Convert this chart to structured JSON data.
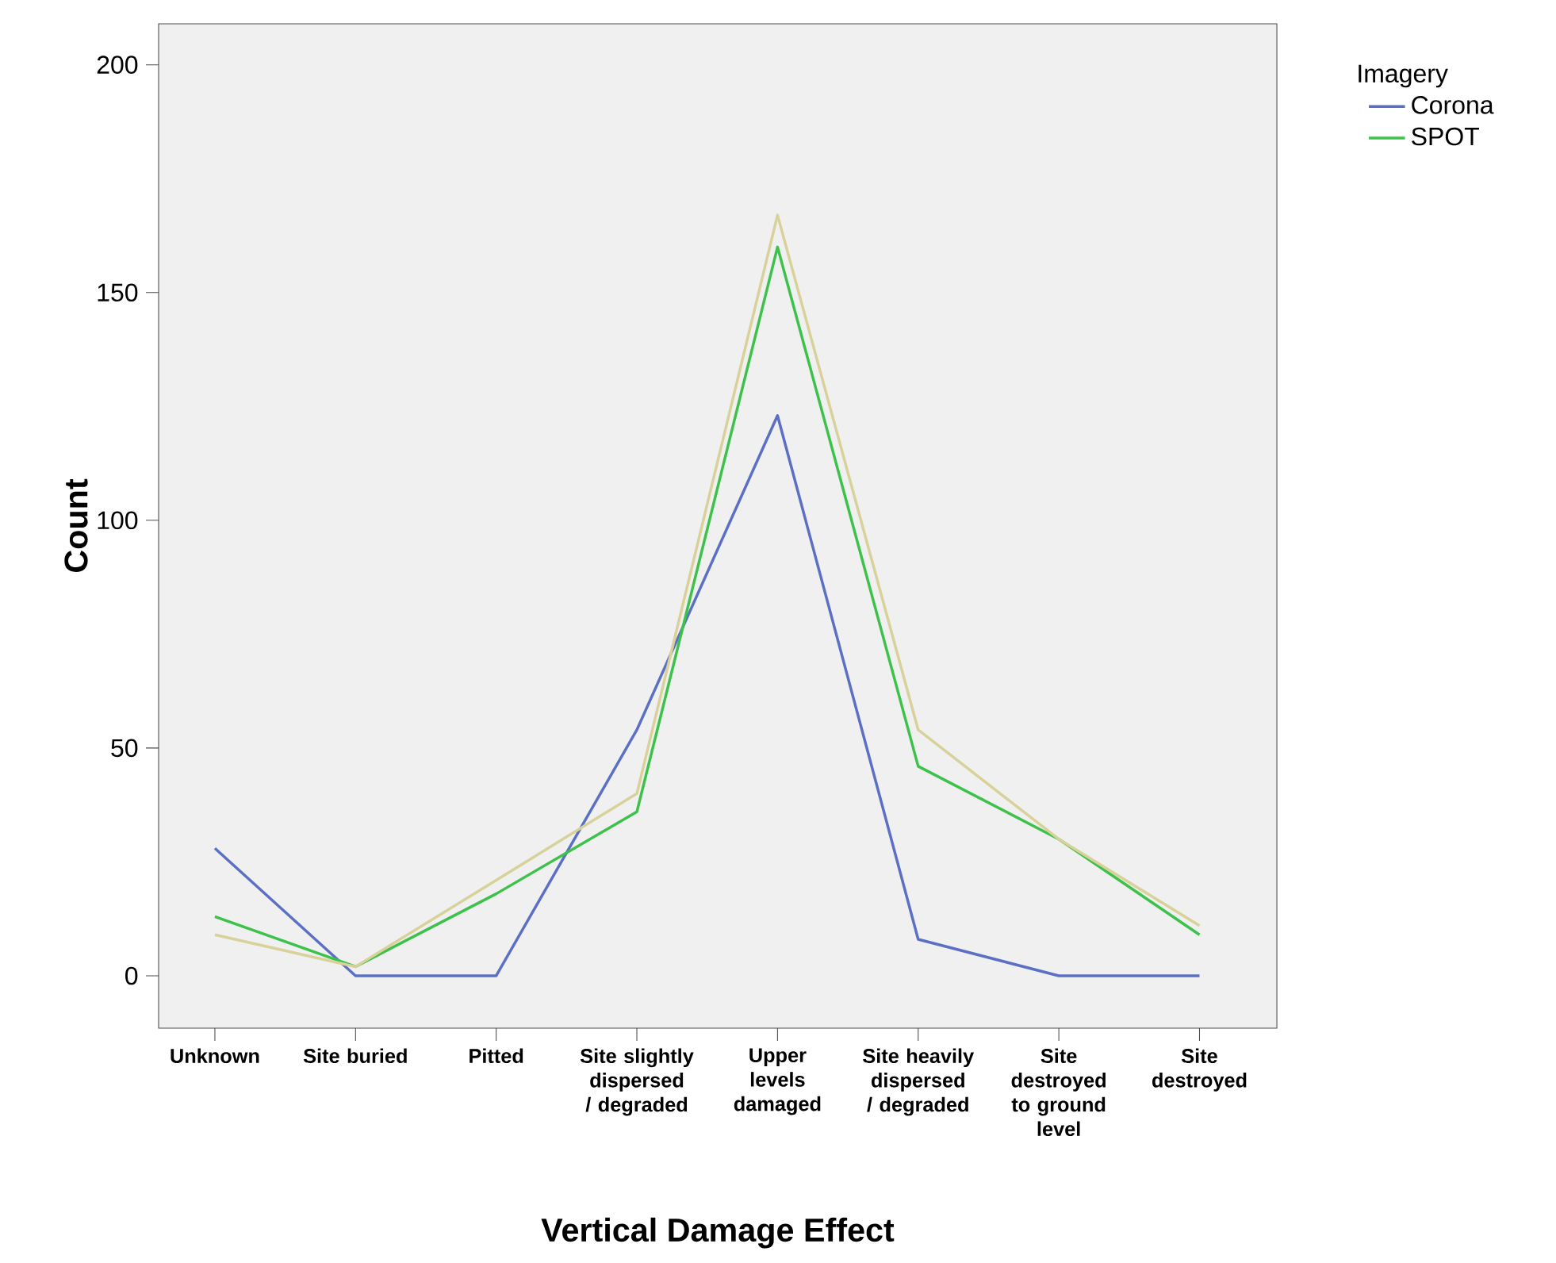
{
  "chart_data": {
    "type": "line",
    "xlabel": "Vertical Damage Effect",
    "ylabel": "Count",
    "legend_title": "Imagery",
    "categories": [
      "Unknown",
      "Site buried",
      "Pitted",
      "Site slightly dispersed / degraded",
      "Upper levels damaged",
      "Site heavily dispersed / degraded",
      "Site destroyed to ground level",
      "Site destroyed"
    ],
    "series": [
      {
        "name": "Corona",
        "color": "#5b6fc4",
        "values": [
          28,
          0,
          0,
          54,
          123,
          8,
          0,
          0
        ]
      },
      {
        "name": "SPOT",
        "color": "#3cc24a",
        "values": [
          13,
          2,
          18,
          36,
          160,
          46,
          30,
          9
        ]
      },
      {
        "color": "#d9d19a",
        "values": [
          9,
          2,
          21,
          40,
          167,
          54,
          30,
          11
        ]
      }
    ],
    "ylim": [
      -11.5,
      209
    ],
    "yticks": [
      0,
      50,
      100,
      150,
      200
    ],
    "grid": false,
    "legend": "top right",
    "marker": "none",
    "line_style": "solid"
  }
}
